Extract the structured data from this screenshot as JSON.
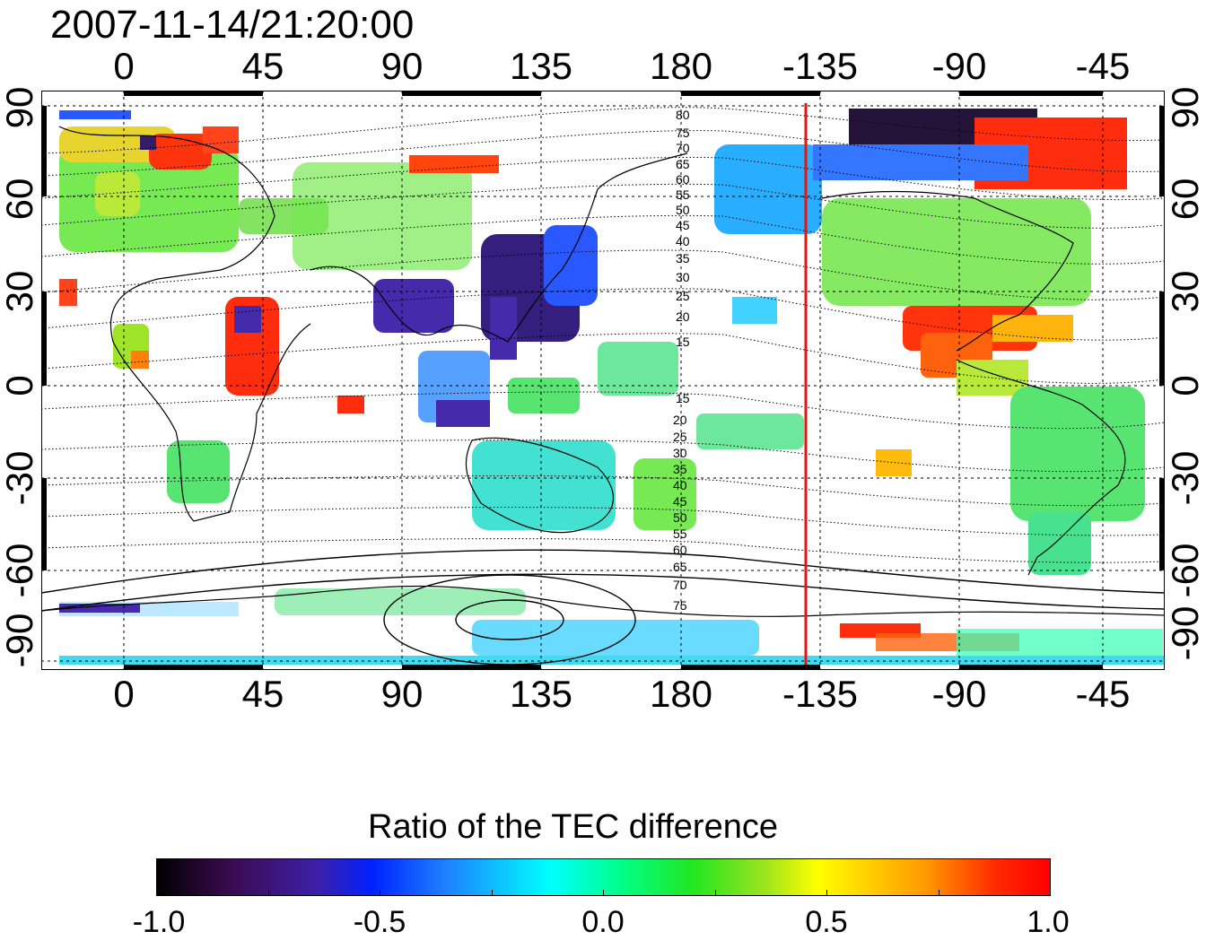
{
  "timestamp": "2007-11-14/21:20:00",
  "top_axis": {
    "labels": [
      "0",
      "45",
      "90",
      "135",
      "180",
      "-135",
      "-90",
      "-45"
    ]
  },
  "bottom_axis": {
    "labels": [
      "0",
      "45",
      "90",
      "135",
      "180",
      "-135",
      "-90",
      "-45"
    ]
  },
  "left_axis": {
    "labels": [
      "90",
      "60",
      "30",
      "0",
      "-30",
      "-60",
      "-90"
    ]
  },
  "right_axis": {
    "labels": [
      "90",
      "60",
      "30",
      "0",
      "-30",
      "-60",
      "-90"
    ]
  },
  "magnetic_latitude_labels": {
    "north": [
      "80",
      "75",
      "70",
      "65",
      "60",
      "55",
      "50",
      "45",
      "40",
      "35",
      "30",
      "25",
      "20",
      "15"
    ],
    "south": [
      "15",
      "20",
      "25",
      "30",
      "35",
      "40",
      "45",
      "50",
      "55",
      "60",
      "65",
      "70",
      "75"
    ]
  },
  "terminator_line": {
    "longitude": -140,
    "color": "#e8150c"
  },
  "colorbar": {
    "title": "Ratio of the TEC difference",
    "tick_labels": [
      "-1.0",
      "-0.5",
      "0.0",
      "0.5",
      "1.0"
    ],
    "range": [
      -1.0,
      1.0
    ]
  }
}
